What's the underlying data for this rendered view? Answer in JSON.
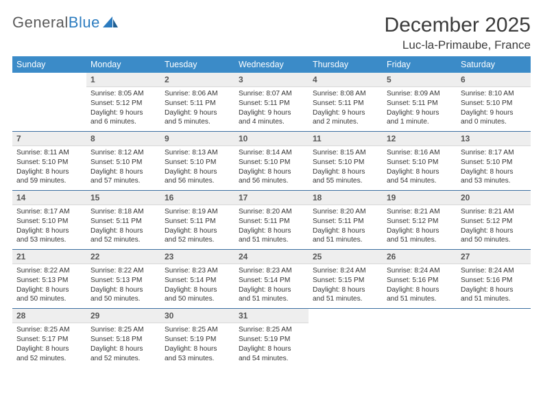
{
  "logo": {
    "word1": "General",
    "word2": "Blue"
  },
  "header": {
    "month_title": "December 2025",
    "location": "Luc-la-Primaube, France"
  },
  "colors": {
    "header_bg": "#3b8bc8",
    "header_text": "#ffffff",
    "daynum_bg": "#eeeeee",
    "row_border": "#3b6ea0",
    "logo_gray": "#5a5a5a",
    "logo_blue": "#2b7bbf"
  },
  "weekdays": [
    "Sunday",
    "Monday",
    "Tuesday",
    "Wednesday",
    "Thursday",
    "Friday",
    "Saturday"
  ],
  "weeks": [
    [
      {
        "n": "",
        "sr": "",
        "ss": "",
        "dl": ""
      },
      {
        "n": "1",
        "sr": "Sunrise: 8:05 AM",
        "ss": "Sunset: 5:12 PM",
        "dl": "Daylight: 9 hours and 6 minutes."
      },
      {
        "n": "2",
        "sr": "Sunrise: 8:06 AM",
        "ss": "Sunset: 5:11 PM",
        "dl": "Daylight: 9 hours and 5 minutes."
      },
      {
        "n": "3",
        "sr": "Sunrise: 8:07 AM",
        "ss": "Sunset: 5:11 PM",
        "dl": "Daylight: 9 hours and 4 minutes."
      },
      {
        "n": "4",
        "sr": "Sunrise: 8:08 AM",
        "ss": "Sunset: 5:11 PM",
        "dl": "Daylight: 9 hours and 2 minutes."
      },
      {
        "n": "5",
        "sr": "Sunrise: 8:09 AM",
        "ss": "Sunset: 5:11 PM",
        "dl": "Daylight: 9 hours and 1 minute."
      },
      {
        "n": "6",
        "sr": "Sunrise: 8:10 AM",
        "ss": "Sunset: 5:10 PM",
        "dl": "Daylight: 9 hours and 0 minutes."
      }
    ],
    [
      {
        "n": "7",
        "sr": "Sunrise: 8:11 AM",
        "ss": "Sunset: 5:10 PM",
        "dl": "Daylight: 8 hours and 59 minutes."
      },
      {
        "n": "8",
        "sr": "Sunrise: 8:12 AM",
        "ss": "Sunset: 5:10 PM",
        "dl": "Daylight: 8 hours and 57 minutes."
      },
      {
        "n": "9",
        "sr": "Sunrise: 8:13 AM",
        "ss": "Sunset: 5:10 PM",
        "dl": "Daylight: 8 hours and 56 minutes."
      },
      {
        "n": "10",
        "sr": "Sunrise: 8:14 AM",
        "ss": "Sunset: 5:10 PM",
        "dl": "Daylight: 8 hours and 56 minutes."
      },
      {
        "n": "11",
        "sr": "Sunrise: 8:15 AM",
        "ss": "Sunset: 5:10 PM",
        "dl": "Daylight: 8 hours and 55 minutes."
      },
      {
        "n": "12",
        "sr": "Sunrise: 8:16 AM",
        "ss": "Sunset: 5:10 PM",
        "dl": "Daylight: 8 hours and 54 minutes."
      },
      {
        "n": "13",
        "sr": "Sunrise: 8:17 AM",
        "ss": "Sunset: 5:10 PM",
        "dl": "Daylight: 8 hours and 53 minutes."
      }
    ],
    [
      {
        "n": "14",
        "sr": "Sunrise: 8:17 AM",
        "ss": "Sunset: 5:10 PM",
        "dl": "Daylight: 8 hours and 53 minutes."
      },
      {
        "n": "15",
        "sr": "Sunrise: 8:18 AM",
        "ss": "Sunset: 5:11 PM",
        "dl": "Daylight: 8 hours and 52 minutes."
      },
      {
        "n": "16",
        "sr": "Sunrise: 8:19 AM",
        "ss": "Sunset: 5:11 PM",
        "dl": "Daylight: 8 hours and 52 minutes."
      },
      {
        "n": "17",
        "sr": "Sunrise: 8:20 AM",
        "ss": "Sunset: 5:11 PM",
        "dl": "Daylight: 8 hours and 51 minutes."
      },
      {
        "n": "18",
        "sr": "Sunrise: 8:20 AM",
        "ss": "Sunset: 5:11 PM",
        "dl": "Daylight: 8 hours and 51 minutes."
      },
      {
        "n": "19",
        "sr": "Sunrise: 8:21 AM",
        "ss": "Sunset: 5:12 PM",
        "dl": "Daylight: 8 hours and 51 minutes."
      },
      {
        "n": "20",
        "sr": "Sunrise: 8:21 AM",
        "ss": "Sunset: 5:12 PM",
        "dl": "Daylight: 8 hours and 50 minutes."
      }
    ],
    [
      {
        "n": "21",
        "sr": "Sunrise: 8:22 AM",
        "ss": "Sunset: 5:13 PM",
        "dl": "Daylight: 8 hours and 50 minutes."
      },
      {
        "n": "22",
        "sr": "Sunrise: 8:22 AM",
        "ss": "Sunset: 5:13 PM",
        "dl": "Daylight: 8 hours and 50 minutes."
      },
      {
        "n": "23",
        "sr": "Sunrise: 8:23 AM",
        "ss": "Sunset: 5:14 PM",
        "dl": "Daylight: 8 hours and 50 minutes."
      },
      {
        "n": "24",
        "sr": "Sunrise: 8:23 AM",
        "ss": "Sunset: 5:14 PM",
        "dl": "Daylight: 8 hours and 51 minutes."
      },
      {
        "n": "25",
        "sr": "Sunrise: 8:24 AM",
        "ss": "Sunset: 5:15 PM",
        "dl": "Daylight: 8 hours and 51 minutes."
      },
      {
        "n": "26",
        "sr": "Sunrise: 8:24 AM",
        "ss": "Sunset: 5:16 PM",
        "dl": "Daylight: 8 hours and 51 minutes."
      },
      {
        "n": "27",
        "sr": "Sunrise: 8:24 AM",
        "ss": "Sunset: 5:16 PM",
        "dl": "Daylight: 8 hours and 51 minutes."
      }
    ],
    [
      {
        "n": "28",
        "sr": "Sunrise: 8:25 AM",
        "ss": "Sunset: 5:17 PM",
        "dl": "Daylight: 8 hours and 52 minutes."
      },
      {
        "n": "29",
        "sr": "Sunrise: 8:25 AM",
        "ss": "Sunset: 5:18 PM",
        "dl": "Daylight: 8 hours and 52 minutes."
      },
      {
        "n": "30",
        "sr": "Sunrise: 8:25 AM",
        "ss": "Sunset: 5:19 PM",
        "dl": "Daylight: 8 hours and 53 minutes."
      },
      {
        "n": "31",
        "sr": "Sunrise: 8:25 AM",
        "ss": "Sunset: 5:19 PM",
        "dl": "Daylight: 8 hours and 54 minutes."
      },
      {
        "n": "",
        "sr": "",
        "ss": "",
        "dl": ""
      },
      {
        "n": "",
        "sr": "",
        "ss": "",
        "dl": ""
      },
      {
        "n": "",
        "sr": "",
        "ss": "",
        "dl": ""
      }
    ]
  ]
}
